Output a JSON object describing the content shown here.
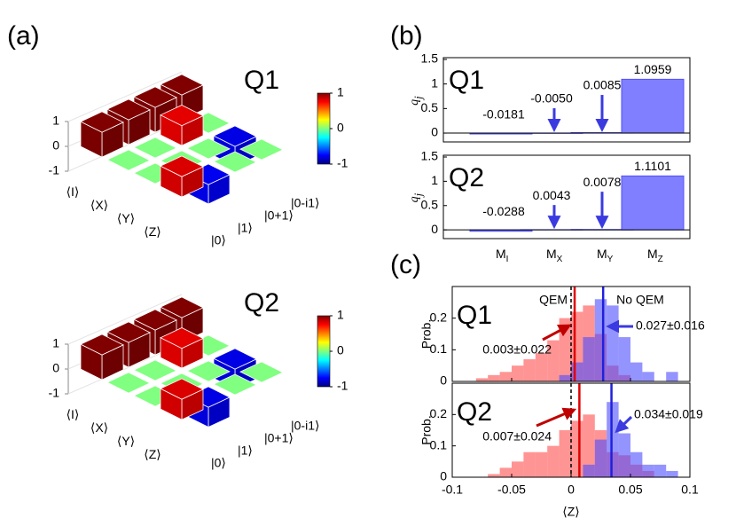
{
  "panel_labels": [
    "(a)",
    "(b)",
    "(c)"
  ],
  "chart_data": [
    {
      "type": "bar3d",
      "title": "Q1",
      "rows": [
        "⟨I⟩",
        "⟨X⟩",
        "⟨Y⟩",
        "⟨Z⟩"
      ],
      "columns": [
        "|0⟩",
        "|1⟩",
        "|0+1⟩",
        "|0-i1⟩"
      ],
      "values": [
        [
          1,
          1,
          1,
          1
        ],
        [
          0,
          0,
          0.8,
          0
        ],
        [
          0,
          0,
          0,
          -0.8
        ],
        [
          0.82,
          -0.78,
          0,
          0
        ]
      ],
      "zlim": [
        -1,
        1
      ],
      "zticks": [
        -1,
        0,
        1
      ],
      "colormap": "jet",
      "clim": [
        -1,
        1
      ],
      "colorbar_ticks": [
        -1,
        0,
        1
      ]
    },
    {
      "type": "bar3d",
      "title": "Q2",
      "rows": [
        "⟨I⟩",
        "⟨X⟩",
        "⟨Y⟩",
        "⟨Z⟩"
      ],
      "columns": [
        "|0⟩",
        "|1⟩",
        "|0+1⟩",
        "|0-i1⟩"
      ],
      "values": [
        [
          1,
          1,
          1,
          1
        ],
        [
          0,
          0,
          0.8,
          0
        ],
        [
          0,
          0,
          0,
          -0.8
        ],
        [
          0.82,
          -0.8,
          0,
          0
        ]
      ],
      "zlim": [
        -1,
        1
      ],
      "zticks": [
        -1,
        0,
        1
      ],
      "colormap": "jet",
      "clim": [
        -1,
        1
      ],
      "colorbar_ticks": [
        -1,
        0,
        1
      ]
    },
    {
      "type": "bar",
      "title": "Q1",
      "ylabel": {
        "base": "q",
        "sub": "j"
      },
      "values": [
        -0.0181,
        -0.005,
        0.0085,
        1.0959
      ],
      "value_labels": [
        "-0.0181",
        "-0.0050",
        "0.0085",
        "1.0959"
      ],
      "color": "#7f7fff",
      "ylim": [
        -0.18,
        1.5
      ],
      "yticks": [
        0,
        0.5,
        1,
        1.5
      ]
    },
    {
      "type": "bar",
      "title": "Q2",
      "ylabel": {
        "base": "q",
        "sub": "j"
      },
      "categories": [
        {
          "base": "M",
          "sub": "I"
        },
        {
          "base": "M",
          "sub": "X"
        },
        {
          "base": "M",
          "sub": "Y"
        },
        {
          "base": "M",
          "sub": "Z"
        }
      ],
      "values": [
        -0.0288,
        0.0043,
        0.0078,
        1.1101
      ],
      "value_labels": [
        "-0.0288",
        "0.0043",
        "0.0078",
        "1.1101"
      ],
      "color": "#7f7fff",
      "ylim": [
        -0.18,
        1.5
      ],
      "yticks": [
        0,
        0.5,
        1,
        1.5
      ]
    },
    {
      "type": "histogram",
      "title": "Q1",
      "ylabel": "Prob.",
      "xlim": [
        -0.1,
        0.1
      ],
      "xticks": [
        -0.1,
        -0.05,
        0,
        0.05,
        0.1
      ],
      "ylim": [
        0,
        0.3
      ],
      "yticks": [
        0,
        0.1,
        0.2
      ],
      "reference_line": 0,
      "series": [
        {
          "name": "QEM",
          "color": "#ff4d4d",
          "line_color": "#e00000",
          "text_color": "#c00000",
          "bins": [
            -0.08,
            -0.07,
            -0.06,
            -0.05,
            -0.04,
            -0.03,
            -0.02,
            -0.01,
            0,
            0.01,
            0.02,
            0.03,
            0.04,
            0.05
          ],
          "counts": [
            0.01,
            0.02,
            0.03,
            0.05,
            0.07,
            0.09,
            0.13,
            0.2,
            0.22,
            0.24,
            0.15,
            0.05,
            0.02
          ],
          "mean": 0.003,
          "mean_label": "0.003±0.022"
        },
        {
          "name": "No QEM",
          "color": "#4d4dff",
          "line_color": "#2020dd",
          "text_color": "#3a3ae0",
          "bins": [
            -0.01,
            0,
            0.01,
            0.02,
            0.03,
            0.04,
            0.05,
            0.06,
            0.07,
            0.08,
            0.09
          ],
          "counts": [
            0.02,
            0.06,
            0.14,
            0.26,
            0.24,
            0.14,
            0.06,
            0.03,
            0,
            0.03
          ],
          "mean": 0.027,
          "mean_label": "0.027±0.016"
        }
      ]
    },
    {
      "type": "histogram",
      "title": "Q2",
      "ylabel": "Prob.",
      "xlabel": "⟨Z⟩",
      "xlim": [
        -0.1,
        0.1
      ],
      "xticks": [
        -0.1,
        -0.05,
        0,
        0.05,
        0.1
      ],
      "ylim": [
        0,
        0.3
      ],
      "yticks": [
        0,
        0.1,
        0.2
      ],
      "reference_line": 0,
      "series": [
        {
          "color": "#ff4d4d",
          "line_color": "#e00000",
          "text_color": "#c00000",
          "bins": [
            -0.07,
            -0.06,
            -0.05,
            -0.04,
            -0.03,
            -0.02,
            -0.01,
            0,
            0.01,
            0.02,
            0.03,
            0.04,
            0.05,
            0.06,
            0.07
          ],
          "counts": [
            0.01,
            0.03,
            0.05,
            0.08,
            0.08,
            0.1,
            0.15,
            0.18,
            0.2,
            0.15,
            0.08,
            0.07,
            0.04,
            0.02
          ],
          "mean": 0.007,
          "mean_label": "0.007±0.024"
        },
        {
          "color": "#4d4dff",
          "line_color": "#2020dd",
          "text_color": "#3a3ae0",
          "bins": [
            0.01,
            0.02,
            0.03,
            0.04,
            0.05,
            0.06,
            0.07,
            0.08,
            0.09
          ],
          "counts": [
            0.04,
            0.12,
            0.24,
            0.14,
            0.08,
            0.04,
            0.04,
            0.02
          ],
          "mean": 0.034,
          "mean_label": "0.034±0.019"
        }
      ]
    }
  ]
}
